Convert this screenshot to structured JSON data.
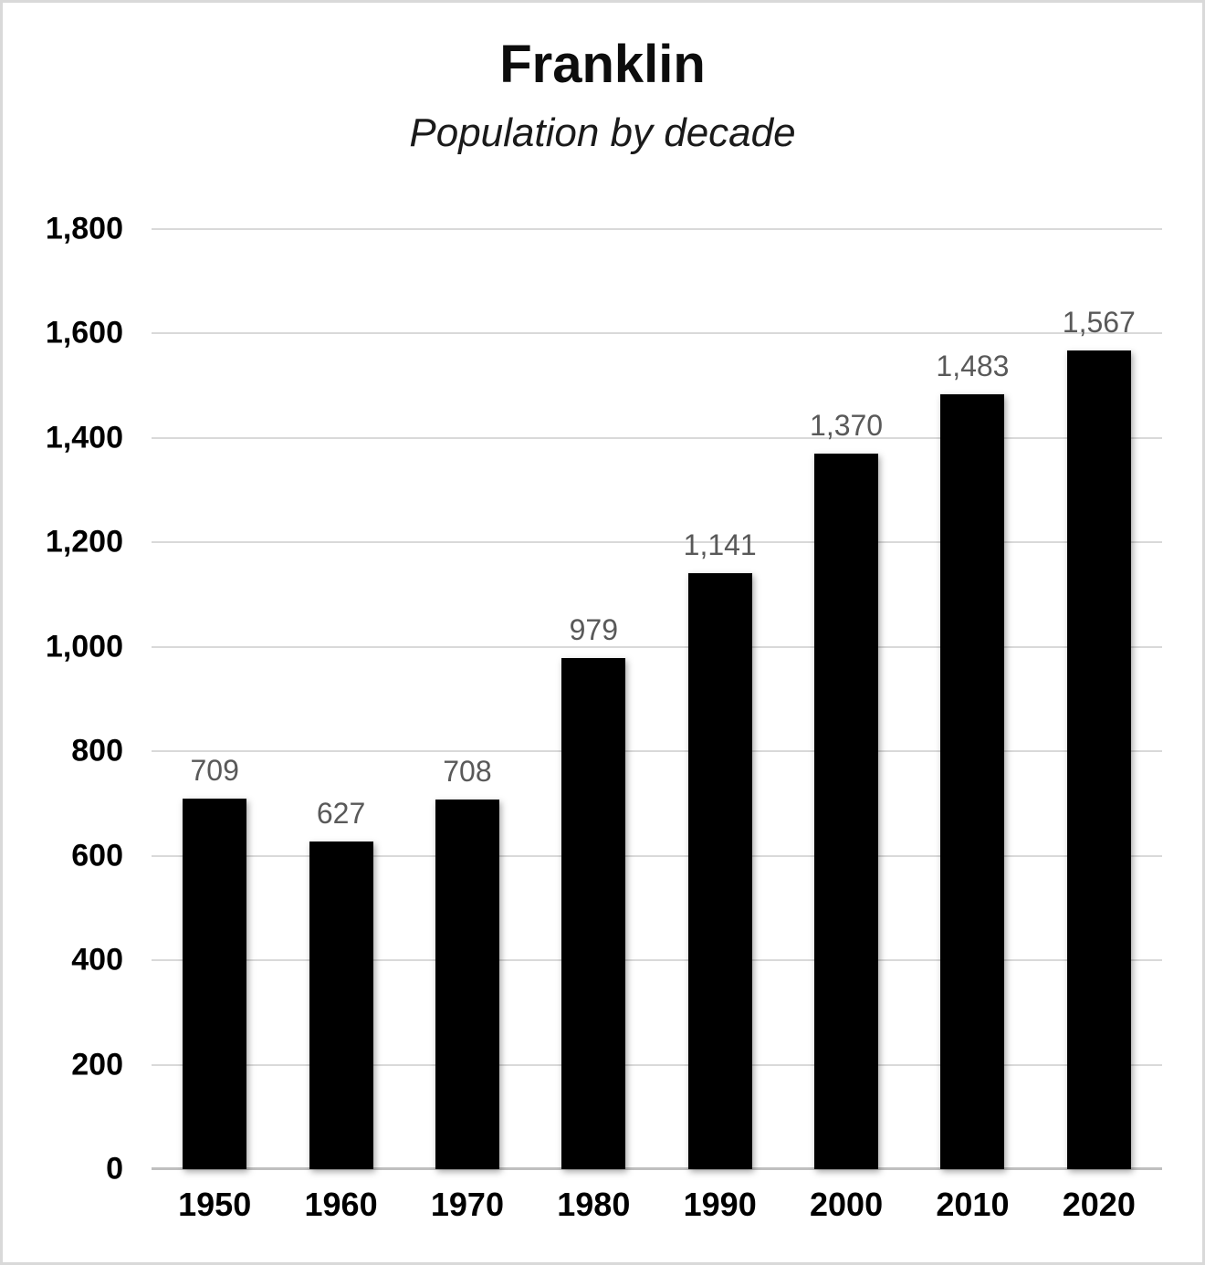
{
  "title": "Franklin",
  "subtitle": "Population by decade",
  "chart_data": {
    "type": "bar",
    "title": "Franklin",
    "subtitle": "Population by decade",
    "categories": [
      "1950",
      "1960",
      "1970",
      "1980",
      "1990",
      "2000",
      "2010",
      "2020"
    ],
    "values": [
      709,
      627,
      708,
      979,
      1141,
      1370,
      1483,
      1567
    ],
    "value_labels": [
      "709",
      "627",
      "708",
      "979",
      "1,141",
      "1,370",
      "1,483",
      "1,567"
    ],
    "xlabel": "",
    "ylabel": "",
    "ylim": [
      0,
      1800
    ],
    "ytick_step": 200,
    "ytick_labels": [
      "0",
      "200",
      "400",
      "600",
      "800",
      "1,000",
      "1,200",
      "1,400",
      "1,600",
      "1,800"
    ],
    "grid": true,
    "legend": false,
    "colors": {
      "bar": "#000000",
      "data_label": "#595959",
      "gridline": "#d9d9d9",
      "axis_line": "#bfbfbf",
      "tick_label": "#000000",
      "background": "#ffffff",
      "frame_border": "#d9d9d9"
    }
  }
}
